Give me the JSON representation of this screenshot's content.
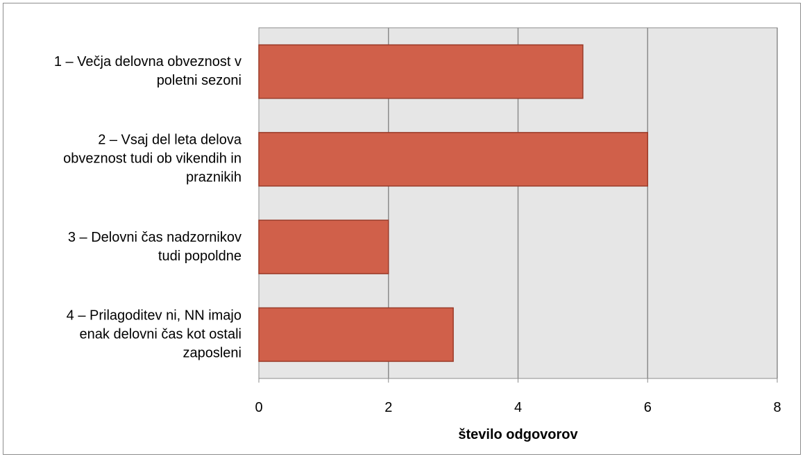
{
  "chart_data": {
    "type": "bar",
    "orientation": "horizontal",
    "title": "",
    "xlabel": "število odgovorov",
    "ylabel": "",
    "xlim": [
      0,
      8
    ],
    "xticks": [
      "0",
      "2",
      "4",
      "6",
      "8"
    ],
    "grid": true,
    "legend": "none",
    "categories": [
      [
        "1 – Večja delovna obveznost v",
        "poletni sezoni"
      ],
      [
        "2 – Vsaj  del leta delova",
        "obveznost tudi ob vikendih in",
        "praznikih"
      ],
      [
        "3 – Delovni čas nadzornikov",
        "tudi popoldne"
      ],
      [
        "4 – Prilagoditev ni, NN imajo",
        "enak delovni čas kot ostali",
        "zaposleni"
      ]
    ],
    "values": [
      5,
      6,
      2,
      3
    ],
    "colors": {
      "bar_fill": "#d0604a",
      "bar_stroke": "#9a3b29",
      "plot_bg": "#e6e6e6",
      "grid": "#8c8c8c"
    }
  }
}
